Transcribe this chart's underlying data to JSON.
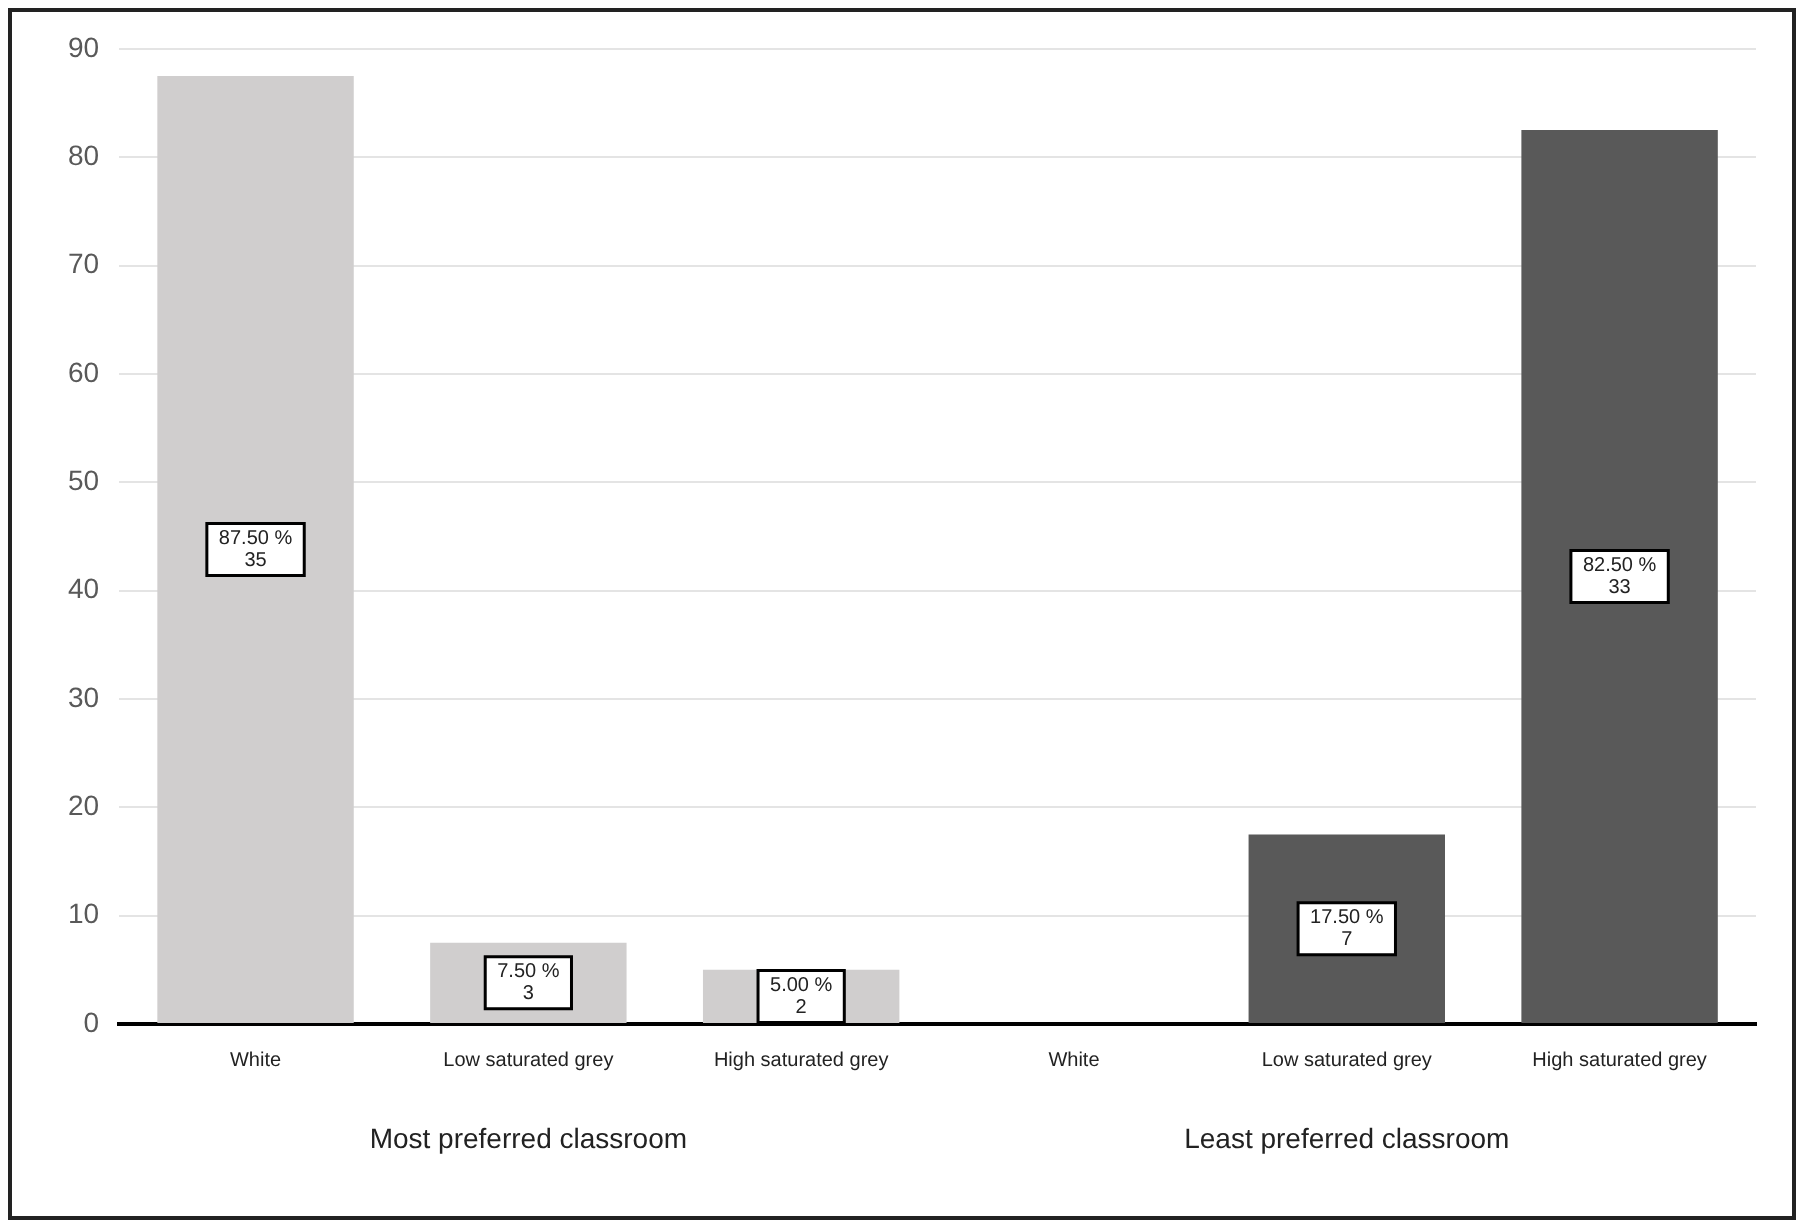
{
  "chart_data": {
    "type": "bar",
    "categories": [
      "White",
      "Low saturated grey",
      "High saturated grey",
      "White",
      "Low saturated grey",
      "High saturated grey"
    ],
    "values": [
      87.5,
      7.5,
      5,
      0,
      17.5,
      82.5
    ],
    "colors": [
      "#d0cece",
      "#d0cece",
      "#d0cece",
      "#595959",
      "#595959",
      "#595959"
    ],
    "value_labels": [
      "87.50 %\n35",
      "7.50 %\n3",
      "5.00 %\n2",
      null,
      "17.50 %\n7",
      "82.50 %\n33"
    ],
    "annotations": [
      "Most preferred classroom",
      "Least preferred classroom"
    ],
    "ylim": [
      0,
      90
    ],
    "yticks": [
      0,
      10,
      20,
      30,
      40,
      50,
      60,
      70,
      80,
      90
    ],
    "grid": "y",
    "legend": false
  }
}
